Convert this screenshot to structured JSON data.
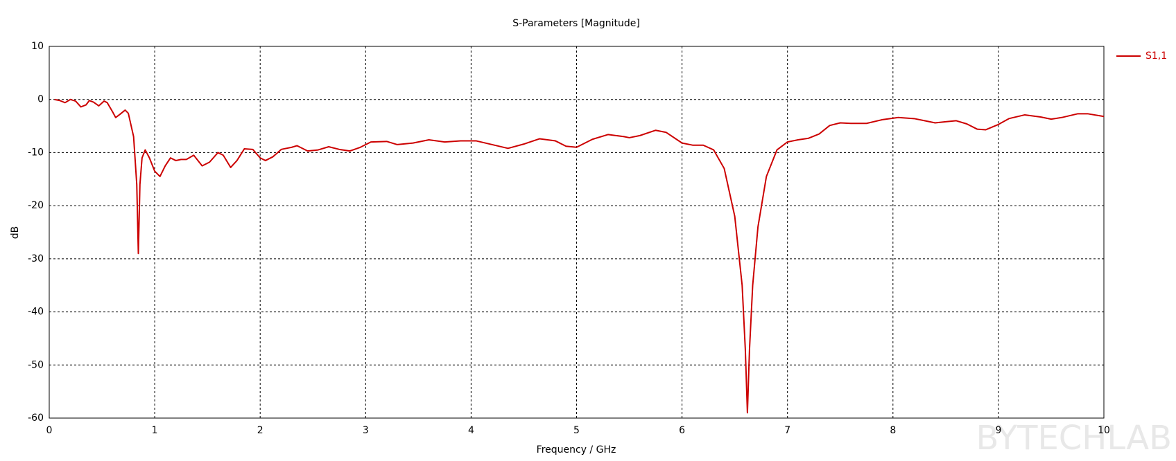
{
  "chart_data": {
    "type": "line",
    "title": "S-Parameters [Magnitude]",
    "x_label": "Frequency / GHz",
    "y_label": "dB",
    "watermark": "BYTECHLAB",
    "xlim": [
      0,
      10
    ],
    "ylim": [
      -60,
      10
    ],
    "xticks": [
      0,
      1,
      2,
      3,
      4,
      5,
      6,
      7,
      8,
      9,
      10
    ],
    "yticks": [
      10,
      0,
      -10,
      -20,
      -30,
      -40,
      -50,
      -60
    ],
    "grid": true,
    "legend": "right",
    "x": [
      0.05,
      0.1,
      0.15,
      0.2,
      0.25,
      0.3,
      0.35,
      0.38,
      0.42,
      0.47,
      0.52,
      0.55,
      0.6,
      0.63,
      0.67,
      0.72,
      0.75,
      0.8,
      0.83,
      0.845,
      0.86,
      0.88,
      0.91,
      0.95,
      1.0,
      1.05,
      1.1,
      1.15,
      1.2,
      1.25,
      1.3,
      1.37,
      1.45,
      1.52,
      1.6,
      1.65,
      1.72,
      1.78,
      1.85,
      1.93,
      2.0,
      2.05,
      2.12,
      2.2,
      2.3,
      2.35,
      2.45,
      2.55,
      2.65,
      2.75,
      2.85,
      2.95,
      3.05,
      3.2,
      3.3,
      3.45,
      3.6,
      3.75,
      3.9,
      4.05,
      4.2,
      4.35,
      4.5,
      4.65,
      4.8,
      4.9,
      5.0,
      5.15,
      5.3,
      5.45,
      5.5,
      5.6,
      5.75,
      5.85,
      6.0,
      6.1,
      6.2,
      6.3,
      6.4,
      6.5,
      6.57,
      6.6,
      6.62,
      6.64,
      6.67,
      6.72,
      6.8,
      6.9,
      7.0,
      7.1,
      7.2,
      7.3,
      7.4,
      7.5,
      7.6,
      7.75,
      7.9,
      8.05,
      8.2,
      8.3,
      8.4,
      8.5,
      8.6,
      8.7,
      8.8,
      8.88,
      9.0,
      9.1,
      9.25,
      9.4,
      9.5,
      9.6,
      9.75,
      9.85,
      10.0
    ],
    "series": [
      {
        "name": "S1,1",
        "color": "#cc0000",
        "values": [
          0,
          -0.2,
          -0.6,
          0,
          -0.3,
          -1.4,
          -1,
          -0.2,
          -0.5,
          -1.2,
          -0.3,
          -0.6,
          -2.3,
          -3.4,
          -2.8,
          -2,
          -2.6,
          -7,
          -16,
          -29,
          -16,
          -11,
          -9.5,
          -11,
          -13.5,
          -14.5,
          -12.5,
          -11,
          -11.5,
          -11.3,
          -11.3,
          -10.5,
          -12.5,
          -11.8,
          -10,
          -10.5,
          -12.8,
          -11.5,
          -9.3,
          -9.4,
          -11,
          -11.5,
          -10.8,
          -9.4,
          -9,
          -8.7,
          -9.7,
          -9.5,
          -8.9,
          -9.4,
          -9.7,
          -9,
          -8,
          -7.9,
          -8.5,
          -8.2,
          -7.6,
          -8,
          -7.8,
          -7.8,
          -8.5,
          -9.2,
          -8.4,
          -7.4,
          -7.8,
          -8.8,
          -9,
          -7.5,
          -6.6,
          -7,
          -7.2,
          -6.8,
          -5.8,
          -6.2,
          -8.2,
          -8.6,
          -8.6,
          -9.5,
          -13,
          -22,
          -35,
          -47,
          -59,
          -47,
          -35,
          -24,
          -14.5,
          -9.5,
          -8,
          -7.6,
          -7.3,
          -6.5,
          -4.9,
          -4.4,
          -4.5,
          -4.5,
          -3.8,
          -3.4,
          -3.6,
          -4,
          -4.4,
          -4.2,
          -4,
          -4.6,
          -5.6,
          -5.7,
          -4.7,
          -3.6,
          -2.9,
          -3.3,
          -3.7,
          -3.4,
          -2.7,
          -2.7,
          -3.2
        ]
      }
    ]
  }
}
